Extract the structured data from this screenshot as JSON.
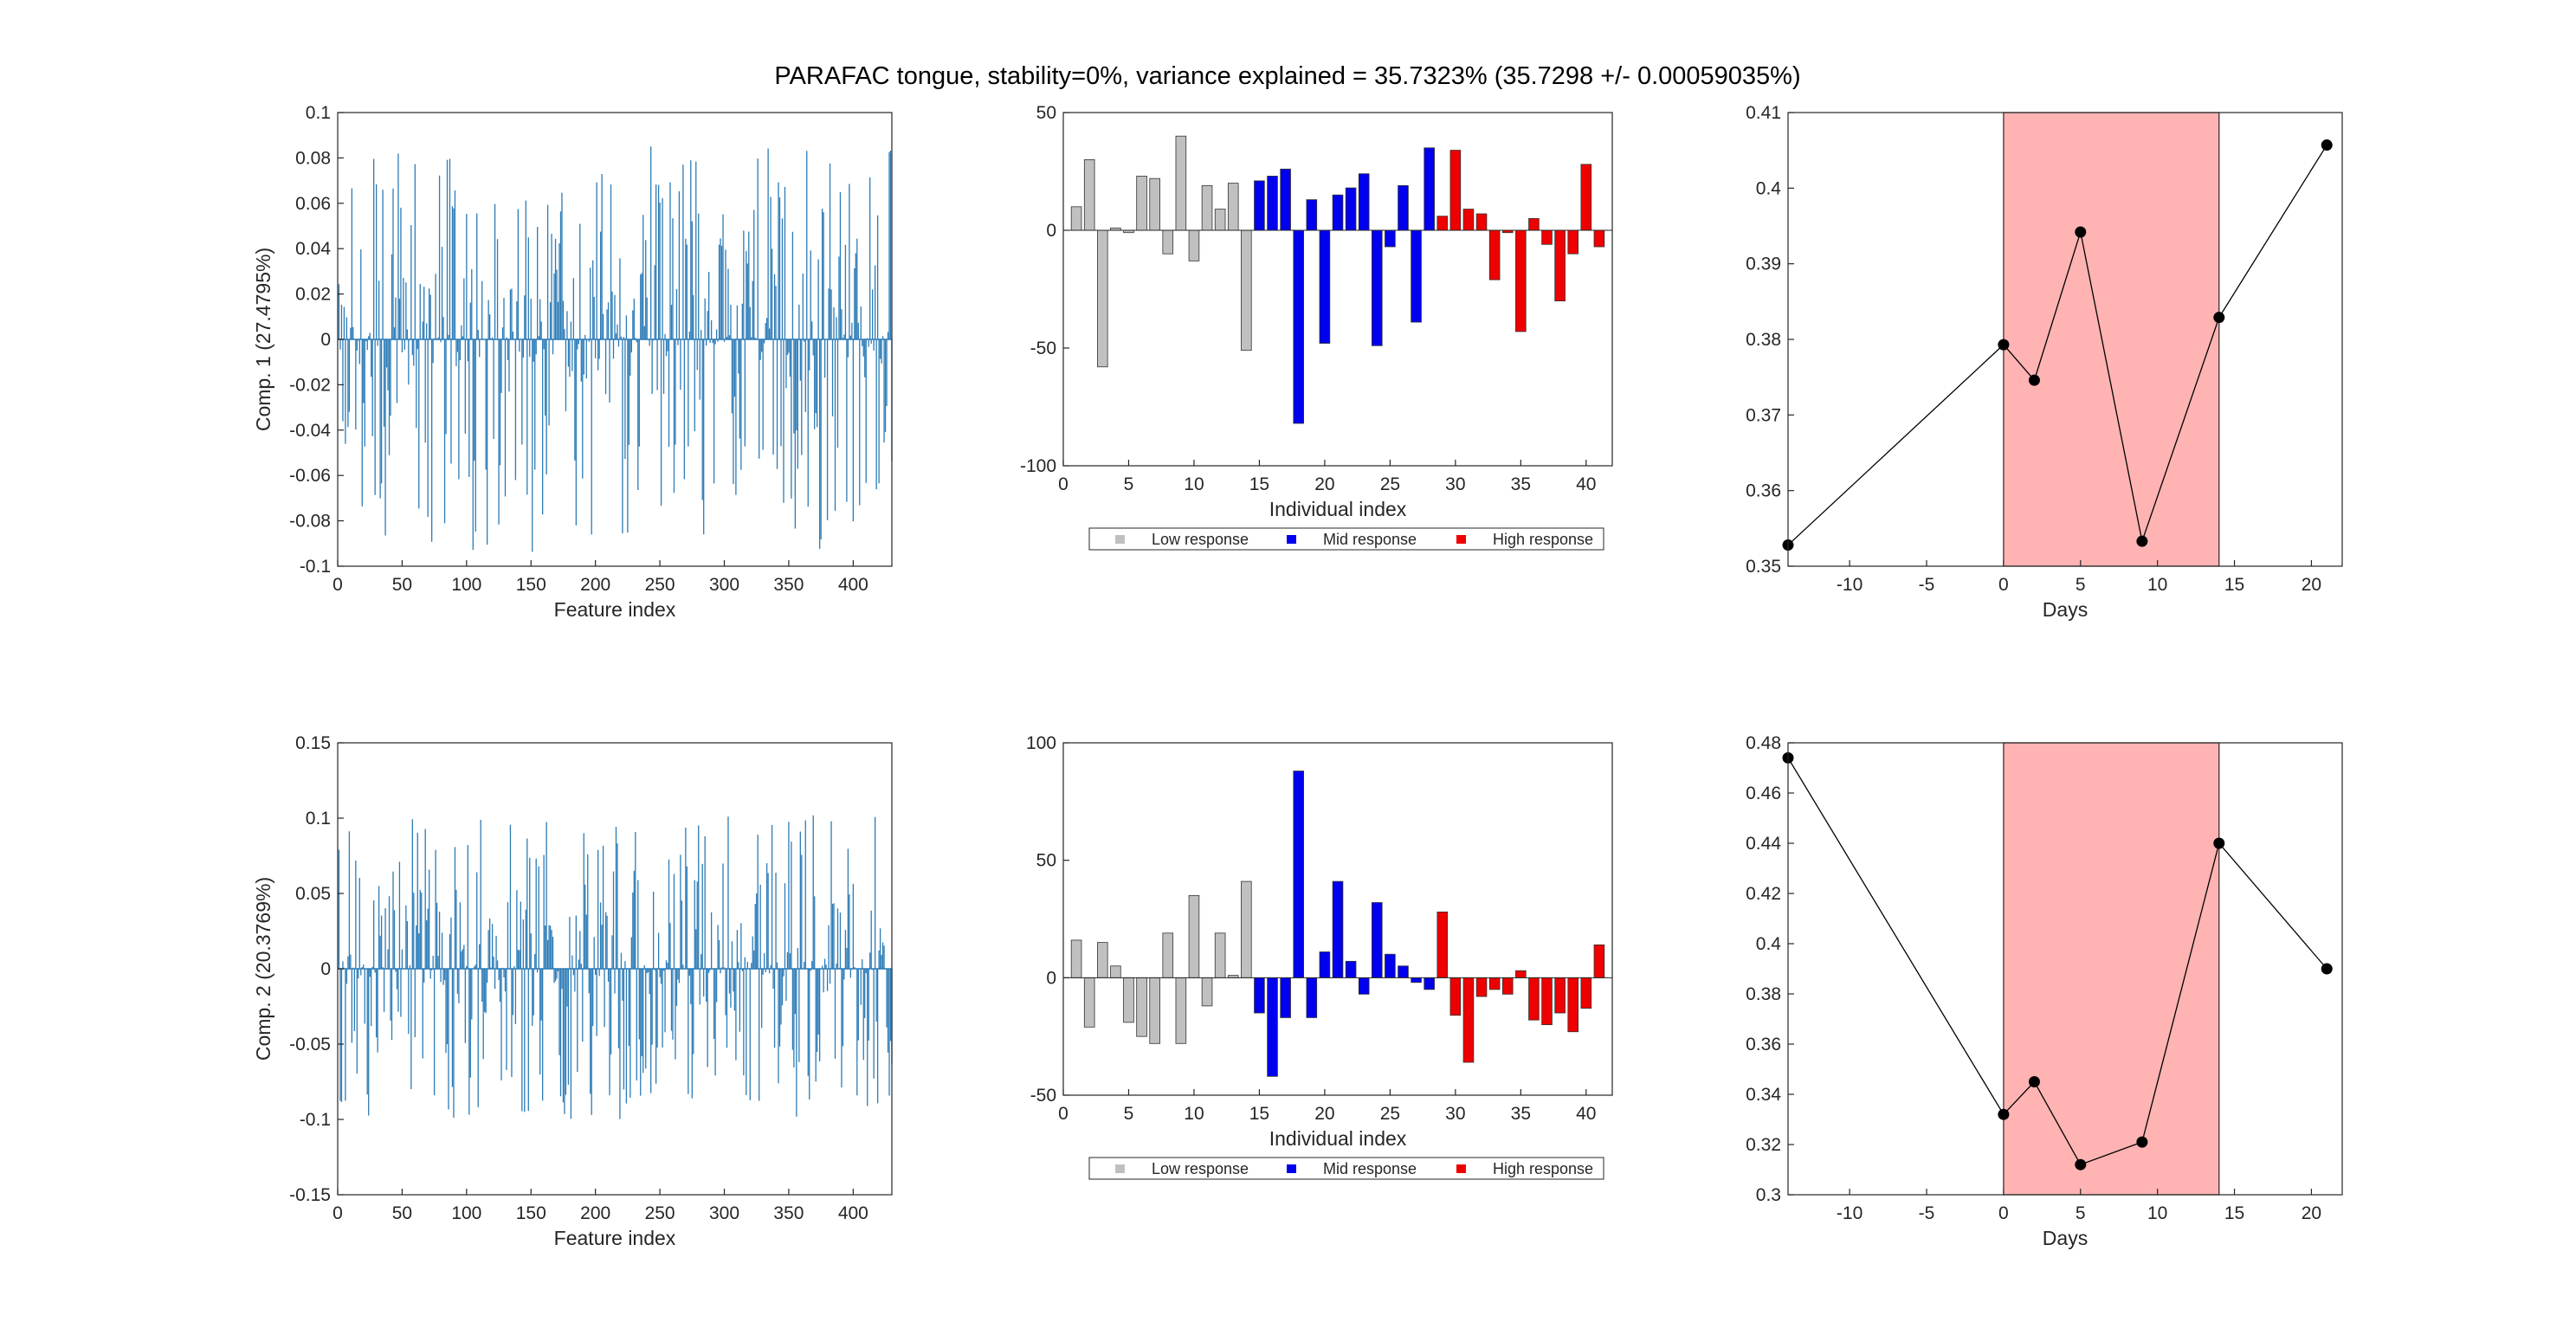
{
  "figure": {
    "title": "PARAFAC tongue, stability=0%, variance explained =  35.7323% (35.7298 +/- 0.00059035%)"
  },
  "colors": {
    "feature_line": "#2c7bb6",
    "low": "#c0c0c0",
    "mid": "#0000ee",
    "high": "#ee0000",
    "shade": "#ffb3b3",
    "point": "#000000"
  },
  "legend": {
    "low": "Low response",
    "mid": "Mid response",
    "high": "High response"
  },
  "chart_data": [
    {
      "id": "features-1",
      "type": "bar",
      "ylabel": "Comp. 1 (27.4795%)",
      "xlabel": "Feature index",
      "xlim": [
        0,
        430
      ],
      "ylim": [
        -0.1,
        0.1
      ],
      "xticks": [
        0,
        50,
        100,
        150,
        200,
        250,
        300,
        350,
        400
      ],
      "yticks": [
        -0.1,
        -0.08,
        -0.06,
        -0.04,
        -0.02,
        0,
        0.02,
        0.04,
        0.06,
        0.08,
        0.1
      ],
      "ytick_labels": [
        "-0.1",
        "-0.08",
        "-0.06",
        "-0.04",
        "-0.02",
        "0",
        "0.02",
        "0.04",
        "0.06",
        "0.08",
        "0.1"
      ],
      "n_points": 430,
      "value_range": [
        -0.094,
        0.085
      ],
      "positive_fraction": 0.55
    },
    {
      "id": "individuals-1",
      "type": "bar",
      "xlabel": "Individual index",
      "xlim": [
        0,
        42
      ],
      "ylim": [
        -100,
        50
      ],
      "xticks": [
        0,
        5,
        10,
        15,
        20,
        25,
        30,
        35,
        40
      ],
      "yticks": [
        -100,
        -50,
        0,
        50
      ],
      "ytick_labels": [
        "-100",
        "-50",
        "0",
        "50"
      ],
      "x": [
        1,
        2,
        3,
        4,
        5,
        6,
        7,
        8,
        9,
        10,
        11,
        12,
        13,
        14,
        15,
        16,
        17,
        18,
        19,
        20,
        21,
        22,
        23,
        24,
        25,
        26,
        27,
        28,
        29,
        30,
        31,
        32,
        33,
        34,
        35,
        36,
        37,
        38,
        39,
        40,
        41
      ],
      "values": [
        10,
        30,
        -58,
        1,
        -1,
        23,
        22,
        -10,
        40,
        -13,
        19,
        9,
        20,
        -51,
        21,
        23,
        26,
        -82,
        13,
        -48,
        15,
        18,
        24,
        -49,
        -7,
        19,
        -39,
        35,
        6,
        34,
        9,
        7,
        -21,
        -1,
        -43,
        5,
        -6,
        -30,
        -10,
        28,
        -7
      ],
      "groups": [
        "low",
        "low",
        "low",
        "low",
        "low",
        "low",
        "low",
        "low",
        "low",
        "low",
        "low",
        "low",
        "low",
        "low",
        "mid",
        "mid",
        "mid",
        "mid",
        "mid",
        "mid",
        "mid",
        "mid",
        "mid",
        "mid",
        "mid",
        "mid",
        "mid",
        "mid",
        "high",
        "high",
        "high",
        "high",
        "high",
        "high",
        "high",
        "high",
        "high",
        "high",
        "high",
        "high",
        "high"
      ]
    },
    {
      "id": "days-1",
      "type": "line",
      "xlabel": "Days",
      "xlim": [
        -14,
        22
      ],
      "ylim": [
        0.35,
        0.41
      ],
      "xticks": [
        -10,
        -5,
        0,
        5,
        10,
        15,
        20
      ],
      "yticks": [
        0.35,
        0.36,
        0.37,
        0.38,
        0.39,
        0.4,
        0.41
      ],
      "ytick_labels": [
        "0.35",
        "0.36",
        "0.37",
        "0.38",
        "0.39",
        "0.4",
        "0.41"
      ],
      "shaded_x": [
        0,
        14
      ],
      "x": [
        -14,
        0,
        2,
        5,
        9,
        14,
        21
      ],
      "y": [
        0.3528,
        0.3793,
        0.3746,
        0.3942,
        0.3533,
        0.3829,
        0.4057
      ]
    },
    {
      "id": "features-2",
      "type": "bar",
      "ylabel": "Comp. 2 (20.3769%)",
      "xlabel": "Feature index",
      "xlim": [
        0,
        430
      ],
      "ylim": [
        -0.15,
        0.15
      ],
      "xticks": [
        0,
        50,
        100,
        150,
        200,
        250,
        300,
        350,
        400
      ],
      "yticks": [
        -0.15,
        -0.1,
        -0.05,
        0,
        0.05,
        0.1,
        0.15
      ],
      "ytick_labels": [
        "-0.15",
        "-0.1",
        "-0.05",
        "0",
        "0.05",
        "0.1",
        "0.15"
      ],
      "n_points": 430,
      "value_range": [
        -0.1,
        0.102
      ],
      "positive_fraction": 0.52
    },
    {
      "id": "individuals-2",
      "type": "bar",
      "xlabel": "Individual index",
      "xlim": [
        0,
        42
      ],
      "ylim": [
        -50,
        100
      ],
      "xticks": [
        0,
        5,
        10,
        15,
        20,
        25,
        30,
        35,
        40
      ],
      "yticks": [
        -50,
        0,
        50,
        100
      ],
      "ytick_labels": [
        "-50",
        "0",
        "50",
        "100"
      ],
      "x": [
        1,
        2,
        3,
        4,
        5,
        6,
        7,
        8,
        9,
        10,
        11,
        12,
        13,
        14,
        15,
        16,
        17,
        18,
        19,
        20,
        21,
        22,
        23,
        24,
        25,
        26,
        27,
        28,
        29,
        30,
        31,
        32,
        33,
        34,
        35,
        36,
        37,
        38,
        39,
        40,
        41
      ],
      "values": [
        16,
        -21,
        15,
        5,
        -19,
        -25,
        -28,
        19,
        -28,
        35,
        -12,
        19,
        1,
        41,
        -15,
        -42,
        -17,
        88,
        -17,
        11,
        41,
        7,
        -7,
        32,
        10,
        5,
        -2,
        -5,
        28,
        -16,
        -36,
        -8,
        -5,
        -7,
        3,
        -18,
        -20,
        -15,
        -23,
        -13,
        14
      ],
      "groups": [
        "low",
        "low",
        "low",
        "low",
        "low",
        "low",
        "low",
        "low",
        "low",
        "low",
        "low",
        "low",
        "low",
        "low",
        "mid",
        "mid",
        "mid",
        "mid",
        "mid",
        "mid",
        "mid",
        "mid",
        "mid",
        "mid",
        "mid",
        "mid",
        "mid",
        "mid",
        "high",
        "high",
        "high",
        "high",
        "high",
        "high",
        "high",
        "high",
        "high",
        "high",
        "high",
        "high",
        "high"
      ]
    },
    {
      "id": "days-2",
      "type": "line",
      "xlabel": "Days",
      "xlim": [
        -14,
        22
      ],
      "ylim": [
        0.3,
        0.48
      ],
      "xticks": [
        -10,
        -5,
        0,
        5,
        10,
        15,
        20
      ],
      "yticks": [
        0.3,
        0.32,
        0.34,
        0.36,
        0.38,
        0.4,
        0.42,
        0.44,
        0.46,
        0.48
      ],
      "ytick_labels": [
        "0.3",
        "0.32",
        "0.34",
        "0.36",
        "0.38",
        "0.4",
        "0.42",
        "0.44",
        "0.46",
        "0.48"
      ],
      "shaded_x": [
        0,
        14
      ],
      "x": [
        -14,
        0,
        2,
        5,
        9,
        14,
        21
      ],
      "y": [
        0.474,
        0.332,
        0.345,
        0.312,
        0.321,
        0.44,
        0.39
      ]
    }
  ]
}
